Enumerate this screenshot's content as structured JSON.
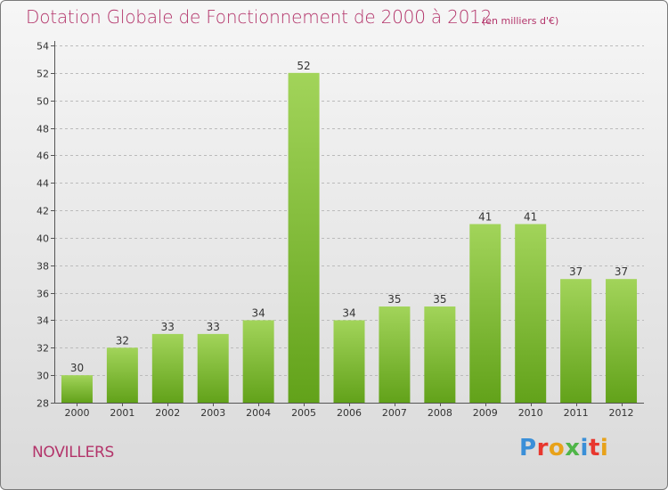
{
  "header": {
    "title": "Dotation Globale de Fonctionnement de 2000 à 2012",
    "subtitle": "(en milliers d'€)"
  },
  "footer": {
    "commune": "NOVILLERS",
    "logo": {
      "text": "Proxiti",
      "colors": [
        "#3a8fd8",
        "#e8372e",
        "#e8a21a",
        "#4fb548",
        "#3a8fd8",
        "#e8372e",
        "#e8a21a"
      ]
    }
  },
  "colors": {
    "title": "#b3346a",
    "bar_top": "#a2d45a",
    "bar_bottom": "#62a21a",
    "grid": "#bbbbbb"
  },
  "chart_data": {
    "type": "bar",
    "title": "Dotation Globale de Fonctionnement de 2000 à 2012",
    "subtitle": "(en milliers d'€)",
    "categories": [
      "2000",
      "2001",
      "2002",
      "2003",
      "2004",
      "2005",
      "2006",
      "2007",
      "2008",
      "2009",
      "2010",
      "2011",
      "2012"
    ],
    "values": [
      30,
      32,
      33,
      33,
      34,
      52,
      34,
      35,
      35,
      41,
      41,
      37,
      37
    ],
    "ylim": [
      28,
      54
    ],
    "yticks": [
      28,
      30,
      32,
      34,
      36,
      38,
      40,
      42,
      44,
      46,
      48,
      50,
      52,
      54
    ],
    "grid": "horizontal dashed",
    "legend": "none",
    "data_labels": true
  }
}
